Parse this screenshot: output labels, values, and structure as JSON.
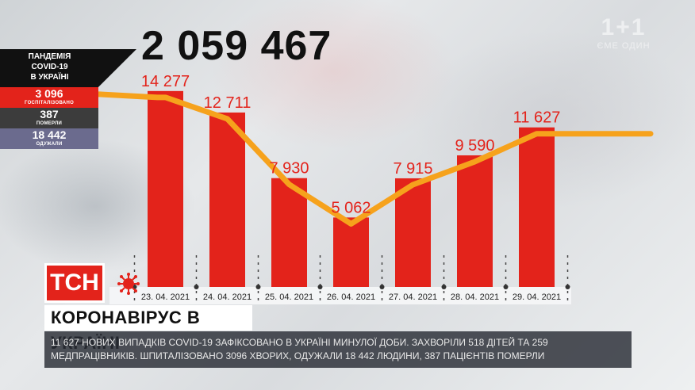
{
  "header": {
    "total": "2 059 467"
  },
  "logo": {
    "line1": "1+1",
    "line2": "ЄМЕ ОДИН"
  },
  "stats": {
    "title": "ПАНДЕМІЯ\nCOVID-19\nВ УКРАЇНІ",
    "hospitalized": {
      "value": "3 096",
      "label": "ГОСПІТАЛІЗОВАНО"
    },
    "died": {
      "value": "387",
      "label": "ПОМЕРЛИ"
    },
    "recovered": {
      "value": "18 442",
      "label": "ОДУЖАЛИ"
    },
    "colors": {
      "hospitalized": "#e3231b",
      "died": "#3c3c3c",
      "recovered": "#6b6b8e"
    }
  },
  "chart_data": {
    "type": "bar",
    "categories": [
      "23. 04. 2021",
      "24. 04. 2021",
      "25. 04. 2021",
      "26. 04. 2021",
      "27. 04. 2021",
      "28. 04. 2021",
      "29. 04. 2021"
    ],
    "values": [
      14277,
      12711,
      7930,
      5062,
      7915,
      9590,
      11627
    ],
    "labels": [
      "14 277",
      "12 711",
      "7 930",
      "5 062",
      "7 915",
      "9 590",
      "11 627"
    ],
    "title": "",
    "xlabel": "",
    "ylabel": "",
    "ylim": [
      0,
      16000
    ],
    "grid": false,
    "trend_line": true,
    "colors": {
      "bar": "#e3231b",
      "trend": "#f6a21c",
      "labels": "#e3231b"
    }
  },
  "lower_third": {
    "brand": "ТСН",
    "headline": "КОРОНАВІРУС В УКРАЇНІ",
    "ticker": "11 627 НОВИХ ВИПАДКІВ COVID-19 ЗАФІКСОВАНО В УКРАЇНІ МИНУЛОЇ ДОБИ. ЗАХВОРІЛИ 518 ДІТЕЙ ТА 259 МЕДПРАЦІВНИКІВ. ШПИТАЛІЗОВАНО 3096 ХВОРИХ, ОДУЖАЛИ 18 442 ЛЮДИНИ, 387 ПАЦІЄНТІВ ПОМЕРЛИ",
    "virus_icon": "virus-icon"
  }
}
